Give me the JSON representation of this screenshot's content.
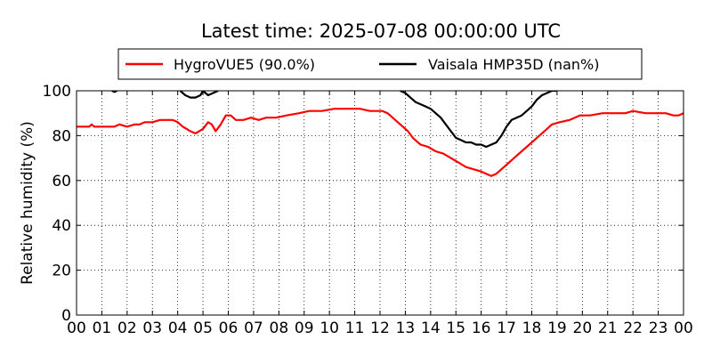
{
  "chart_data": {
    "type": "line",
    "title": "Latest time: 2025-07-08 00:00:00 UTC",
    "xlabel": "",
    "ylabel": "Relative humidity (%)",
    "xlim": [
      0,
      24
    ],
    "ylim": [
      0,
      100
    ],
    "x_ticks": [
      "00",
      "01",
      "02",
      "03",
      "04",
      "05",
      "06",
      "07",
      "08",
      "09",
      "10",
      "11",
      "12",
      "13",
      "14",
      "15",
      "16",
      "17",
      "18",
      "19",
      "20",
      "21",
      "22",
      "23",
      "00"
    ],
    "y_ticks": [
      "0",
      "20",
      "40",
      "60",
      "80",
      "100"
    ],
    "grid": true,
    "legend_position": "top",
    "series": [
      {
        "name": "HygroVUE5 (90.0%)",
        "color": "#ff0000",
        "x": [
          0,
          0.5,
          0.6,
          0.7,
          1.0,
          1.5,
          1.7,
          2.0,
          2.3,
          2.5,
          2.7,
          3.0,
          3.3,
          3.5,
          3.8,
          4.0,
          4.2,
          4.5,
          4.7,
          5.0,
          5.2,
          5.35,
          5.5,
          5.7,
          5.9,
          6.1,
          6.3,
          6.6,
          6.9,
          7.2,
          7.5,
          7.9,
          8.3,
          8.8,
          9.2,
          9.7,
          10.2,
          10.7,
          11.2,
          11.6,
          11.9,
          12.1,
          12.3,
          12.5,
          12.7,
          12.9,
          13.1,
          13.3,
          13.6,
          13.9,
          14.2,
          14.5,
          14.8,
          15.1,
          15.4,
          15.7,
          16.0,
          16.2,
          16.4,
          16.6,
          16.8,
          17.0,
          17.3,
          17.6,
          17.9,
          18.2,
          18.5,
          18.8,
          19.1,
          19.5,
          19.9,
          20.3,
          20.8,
          21.3,
          21.7,
          22.0,
          22.5,
          23.0,
          23.3,
          23.6,
          23.8,
          24.0
        ],
        "y": [
          84,
          84,
          85,
          84,
          84,
          84,
          85,
          84,
          85,
          85,
          86,
          86,
          87,
          87,
          87,
          86,
          84,
          82,
          81,
          83,
          86,
          85,
          82,
          85,
          89,
          89,
          87,
          87,
          88,
          87,
          88,
          88,
          89,
          90,
          91,
          91,
          92,
          92,
          92,
          91,
          91,
          91,
          90,
          88,
          86,
          84,
          82,
          79,
          76,
          75,
          73,
          72,
          70,
          68,
          66,
          65,
          64,
          63,
          62,
          63,
          65,
          67,
          70,
          73,
          76,
          79,
          82,
          85,
          86,
          87,
          89,
          89,
          90,
          90,
          90,
          91,
          90,
          90,
          90,
          89,
          89,
          90
        ]
      },
      {
        "name": "Vaisala HMP35D (nan%)",
        "color": "#000000",
        "x": [
          12.8,
          13.0,
          13.2,
          13.4,
          13.6,
          13.8,
          14.0,
          14.2,
          14.4,
          14.6,
          14.8,
          15.0,
          15.2,
          15.4,
          15.6,
          15.8,
          16.0,
          16.2,
          16.4,
          16.6,
          16.8,
          17.0,
          17.2,
          17.4,
          17.6,
          17.8,
          18.0,
          18.2,
          18.4,
          18.6,
          18.8,
          19.0
        ],
        "y": [
          100,
          99,
          97,
          95,
          94,
          93,
          92,
          90,
          88,
          85,
          82,
          79,
          78,
          77,
          77,
          76,
          76,
          75,
          76,
          77,
          80,
          84,
          87,
          88,
          89,
          91,
          93,
          96,
          98,
          99,
          100,
          100
        ],
        "x2": [
          1.4,
          1.5,
          1.6
        ],
        "y2": [
          100,
          99.5,
          100
        ],
        "x3": [
          4.1,
          4.3,
          4.5,
          4.7,
          4.9,
          5.0,
          5.2,
          5.4,
          5.6
        ],
        "y3": [
          100,
          98,
          97,
          97,
          98,
          100,
          98,
          99,
          100
        ]
      }
    ]
  }
}
